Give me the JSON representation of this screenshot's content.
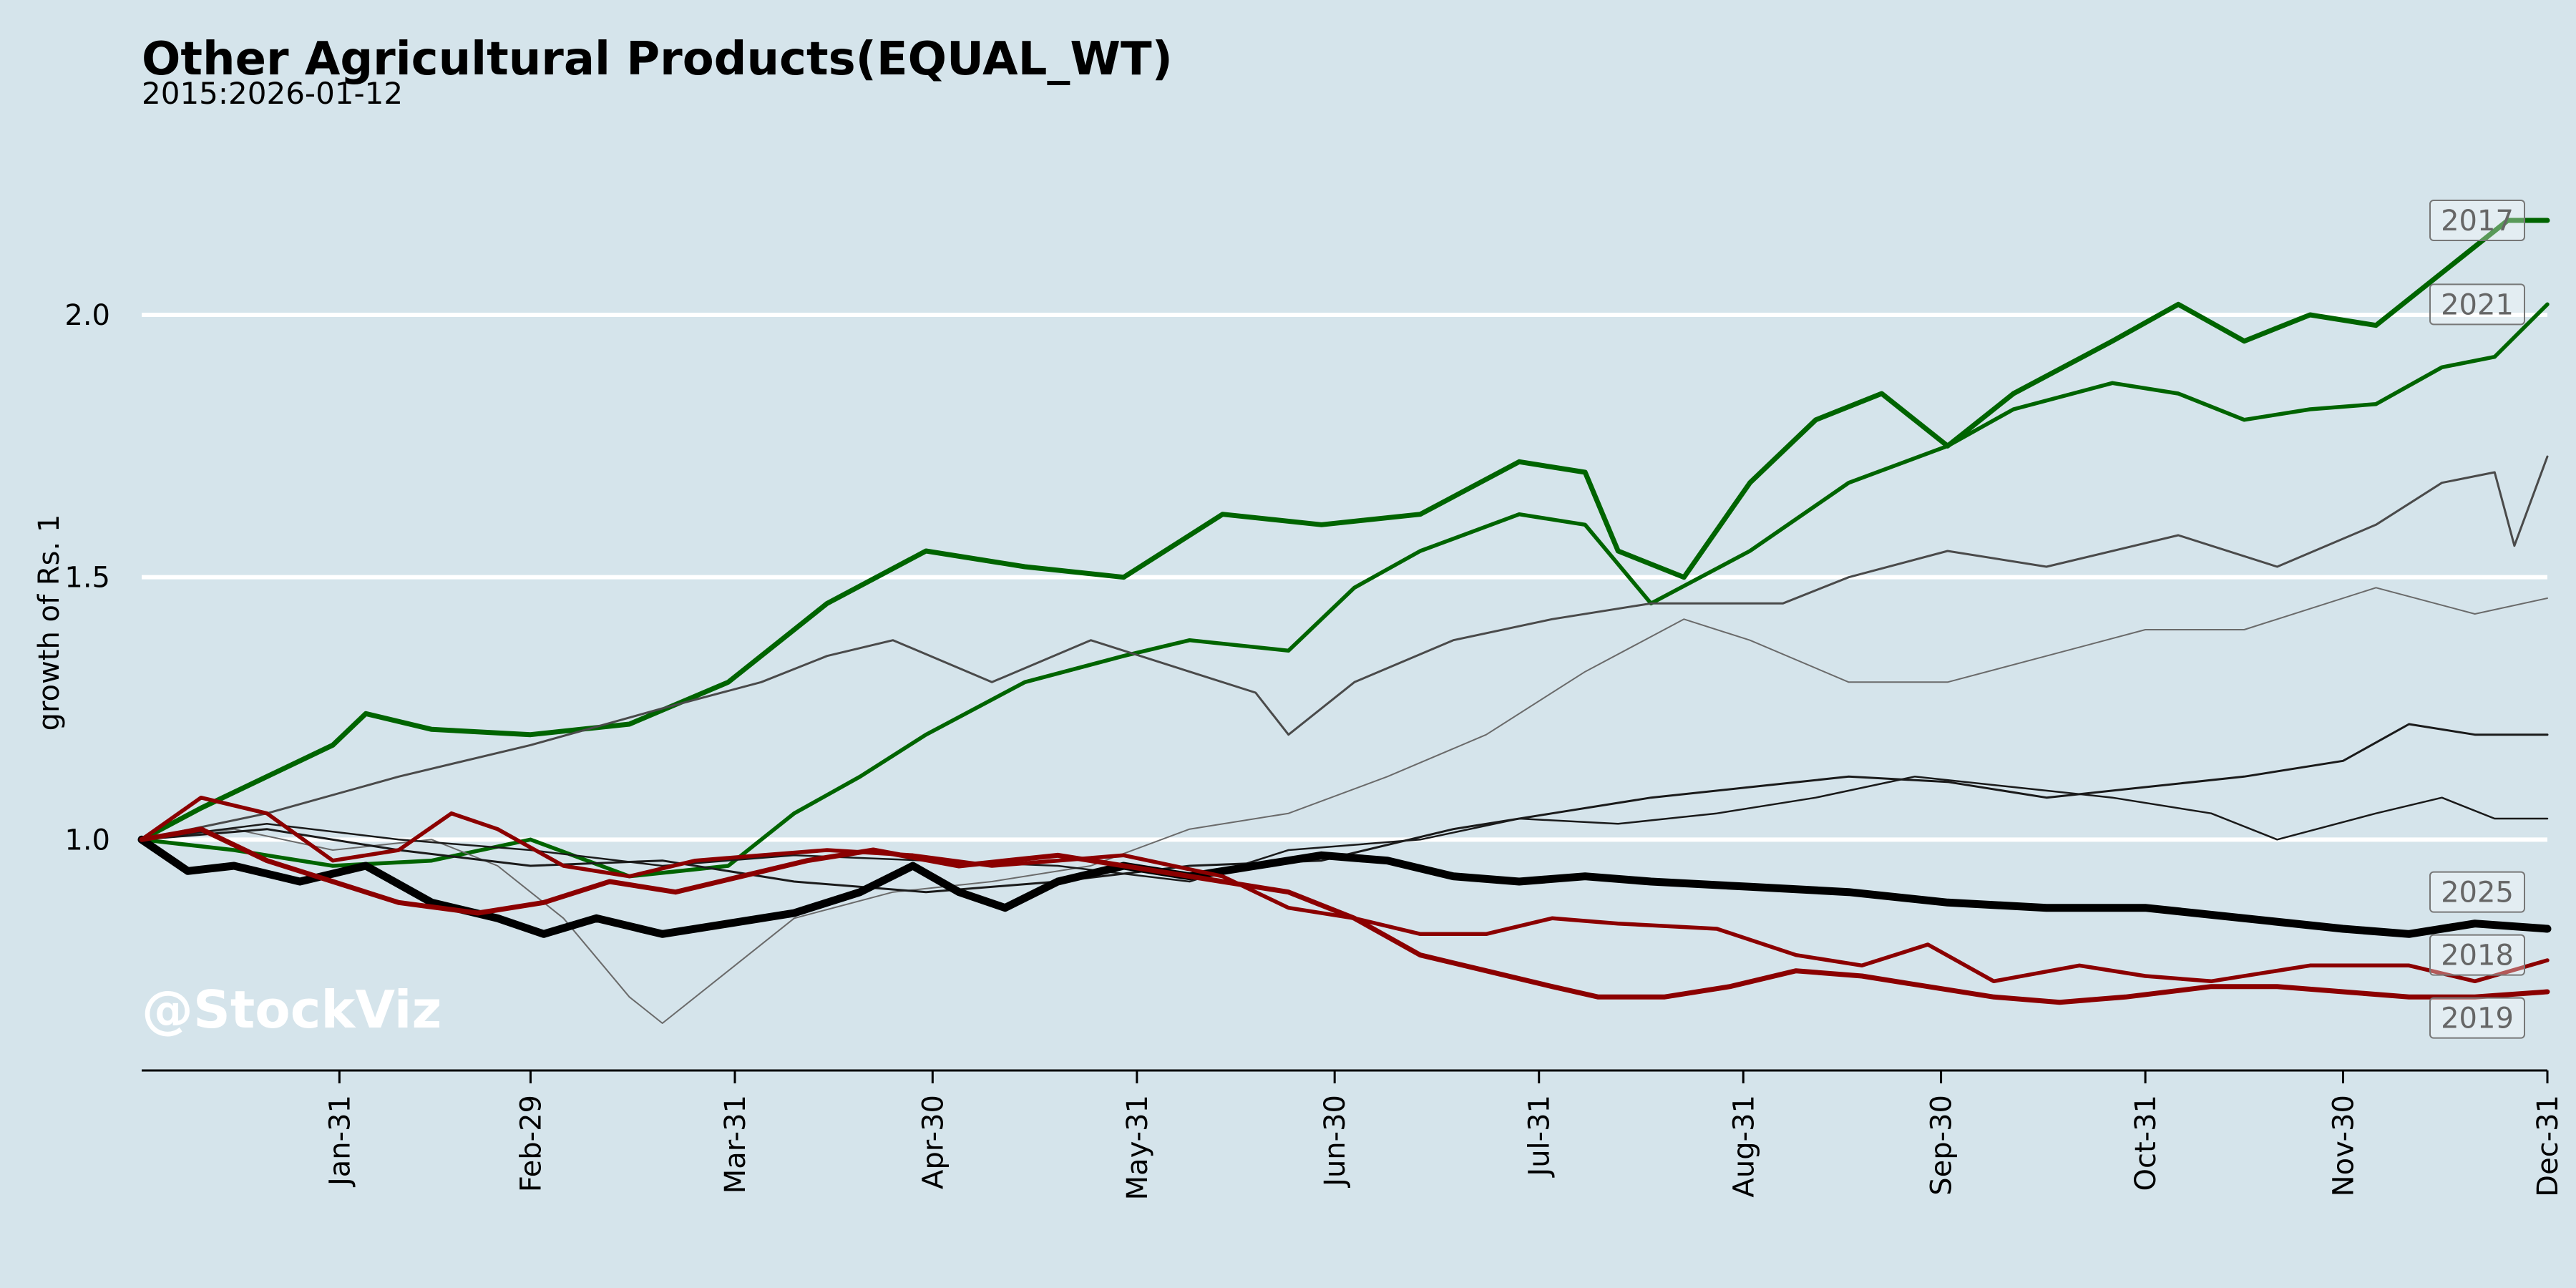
{
  "chart_data": {
    "type": "line",
    "title": "Other Agricultural Products(EQUAL_WT)",
    "subtitle": "2015:2026-01-12",
    "ylabel": "growth of Rs. 1",
    "xlabel": "",
    "watermark": "@StockViz",
    "x_range_days": [
      1,
      366
    ],
    "ylim": [
      0.56,
      2.3
    ],
    "y_ticks": [
      1.0,
      1.5,
      2.0
    ],
    "y_tick_labels": [
      "1.0",
      "1.5",
      "2.0"
    ],
    "x_ticks": [
      {
        "label": "Jan-31",
        "day": 31
      },
      {
        "label": "Feb-29",
        "day": 60
      },
      {
        "label": "Mar-31",
        "day": 91
      },
      {
        "label": "Apr-30",
        "day": 121
      },
      {
        "label": "May-31",
        "day": 152
      },
      {
        "label": "Jun-30",
        "day": 182
      },
      {
        "label": "Jul-31",
        "day": 213
      },
      {
        "label": "Aug-31",
        "day": 244
      },
      {
        "label": "Sep-30",
        "day": 274
      },
      {
        "label": "Oct-31",
        "day": 305
      },
      {
        "label": "Nov-30",
        "day": 335
      },
      {
        "label": "Dec-31",
        "day": 366
      }
    ],
    "grid": "horizontal",
    "series": [
      {
        "name": "2017",
        "color": "#006400",
        "width": 7,
        "opacity": 1,
        "labeled": true,
        "points": [
          [
            1,
            1.0
          ],
          [
            10,
            1.06
          ],
          [
            20,
            1.12
          ],
          [
            30,
            1.18
          ],
          [
            35,
            1.24
          ],
          [
            45,
            1.21
          ],
          [
            60,
            1.2
          ],
          [
            75,
            1.22
          ],
          [
            90,
            1.3
          ],
          [
            105,
            1.45
          ],
          [
            120,
            1.55
          ],
          [
            135,
            1.52
          ],
          [
            150,
            1.5
          ],
          [
            165,
            1.62
          ],
          [
            180,
            1.6
          ],
          [
            195,
            1.62
          ],
          [
            210,
            1.72
          ],
          [
            220,
            1.7
          ],
          [
            225,
            1.55
          ],
          [
            235,
            1.5
          ],
          [
            245,
            1.68
          ],
          [
            255,
            1.8
          ],
          [
            265,
            1.85
          ],
          [
            275,
            1.75
          ],
          [
            285,
            1.85
          ],
          [
            300,
            1.95
          ],
          [
            310,
            2.02
          ],
          [
            320,
            1.95
          ],
          [
            330,
            2.0
          ],
          [
            340,
            1.98
          ],
          [
            350,
            2.08
          ],
          [
            360,
            2.18
          ],
          [
            366,
            2.18
          ]
        ]
      },
      {
        "name": "2021",
        "color": "#006400",
        "width": 5.5,
        "opacity": 1,
        "labeled": true,
        "points": [
          [
            1,
            1.0
          ],
          [
            15,
            0.98
          ],
          [
            30,
            0.95
          ],
          [
            45,
            0.96
          ],
          [
            60,
            1.0
          ],
          [
            75,
            0.93
          ],
          [
            90,
            0.95
          ],
          [
            100,
            1.05
          ],
          [
            110,
            1.12
          ],
          [
            120,
            1.2
          ],
          [
            135,
            1.3
          ],
          [
            150,
            1.35
          ],
          [
            160,
            1.38
          ],
          [
            175,
            1.36
          ],
          [
            185,
            1.48
          ],
          [
            195,
            1.55
          ],
          [
            210,
            1.62
          ],
          [
            220,
            1.6
          ],
          [
            230,
            1.45
          ],
          [
            245,
            1.55
          ],
          [
            260,
            1.68
          ],
          [
            275,
            1.75
          ],
          [
            285,
            1.82
          ],
          [
            300,
            1.87
          ],
          [
            310,
            1.85
          ],
          [
            320,
            1.8
          ],
          [
            330,
            1.82
          ],
          [
            340,
            1.83
          ],
          [
            350,
            1.9
          ],
          [
            358,
            1.92
          ],
          [
            366,
            2.02
          ]
        ]
      },
      {
        "name": "s3",
        "color": "#4a4a4a",
        "width": 3,
        "opacity": 1,
        "labeled": false,
        "points": [
          [
            1,
            1.0
          ],
          [
            20,
            1.05
          ],
          [
            40,
            1.12
          ],
          [
            60,
            1.18
          ],
          [
            80,
            1.25
          ],
          [
            95,
            1.3
          ],
          [
            105,
            1.35
          ],
          [
            115,
            1.38
          ],
          [
            130,
            1.3
          ],
          [
            145,
            1.38
          ],
          [
            160,
            1.32
          ],
          [
            170,
            1.28
          ],
          [
            175,
            1.2
          ],
          [
            185,
            1.3
          ],
          [
            200,
            1.38
          ],
          [
            215,
            1.42
          ],
          [
            230,
            1.45
          ],
          [
            250,
            1.45
          ],
          [
            260,
            1.5
          ],
          [
            275,
            1.55
          ],
          [
            290,
            1.52
          ],
          [
            310,
            1.58
          ],
          [
            325,
            1.52
          ],
          [
            340,
            1.6
          ],
          [
            350,
            1.68
          ],
          [
            358,
            1.7
          ],
          [
            361,
            1.56
          ],
          [
            366,
            1.73
          ]
        ]
      },
      {
        "name": "s4",
        "color": "#6a6a6a",
        "width": 2,
        "opacity": 1,
        "labeled": false,
        "points": [
          [
            1,
            1.0
          ],
          [
            15,
            1.02
          ],
          [
            30,
            0.98
          ],
          [
            45,
            1.0
          ],
          [
            55,
            0.95
          ],
          [
            65,
            0.85
          ],
          [
            75,
            0.7
          ],
          [
            80,
            0.65
          ],
          [
            90,
            0.75
          ],
          [
            100,
            0.85
          ],
          [
            115,
            0.9
          ],
          [
            130,
            0.92
          ],
          [
            145,
            0.95
          ],
          [
            160,
            1.02
          ],
          [
            175,
            1.05
          ],
          [
            190,
            1.12
          ],
          [
            205,
            1.2
          ],
          [
            220,
            1.32
          ],
          [
            235,
            1.42
          ],
          [
            245,
            1.38
          ],
          [
            260,
            1.3
          ],
          [
            275,
            1.3
          ],
          [
            290,
            1.35
          ],
          [
            305,
            1.4
          ],
          [
            320,
            1.4
          ],
          [
            340,
            1.48
          ],
          [
            355,
            1.43
          ],
          [
            366,
            1.46
          ]
        ]
      },
      {
        "name": "s5",
        "color": "#1a1a1a",
        "width": 3,
        "opacity": 1,
        "labeled": false,
        "points": [
          [
            1,
            1.0
          ],
          [
            20,
            1.02
          ],
          [
            40,
            0.98
          ],
          [
            60,
            0.95
          ],
          [
            80,
            0.96
          ],
          [
            100,
            0.92
          ],
          [
            120,
            0.9
          ],
          [
            140,
            0.92
          ],
          [
            160,
            0.95
          ],
          [
            180,
            0.96
          ],
          [
            200,
            1.02
          ],
          [
            215,
            1.05
          ],
          [
            230,
            1.08
          ],
          [
            245,
            1.1
          ],
          [
            260,
            1.12
          ],
          [
            275,
            1.11
          ],
          [
            290,
            1.08
          ],
          [
            305,
            1.1
          ],
          [
            320,
            1.12
          ],
          [
            335,
            1.15
          ],
          [
            345,
            1.22
          ],
          [
            355,
            1.2
          ],
          [
            366,
            1.2
          ]
        ]
      },
      {
        "name": "s6",
        "color": "#1a1a1a",
        "width": 2.5,
        "opacity": 1,
        "labeled": false,
        "points": [
          [
            1,
            1.0
          ],
          [
            20,
            1.03
          ],
          [
            40,
            1.0
          ],
          [
            60,
            0.98
          ],
          [
            80,
            0.95
          ],
          [
            100,
            0.97
          ],
          [
            120,
            0.96
          ],
          [
            140,
            0.95
          ],
          [
            160,
            0.92
          ],
          [
            175,
            0.98
          ],
          [
            195,
            1.0
          ],
          [
            210,
            1.04
          ],
          [
            225,
            1.03
          ],
          [
            240,
            1.05
          ],
          [
            255,
            1.08
          ],
          [
            270,
            1.12
          ],
          [
            285,
            1.1
          ],
          [
            300,
            1.08
          ],
          [
            315,
            1.05
          ],
          [
            325,
            1.0
          ],
          [
            340,
            1.05
          ],
          [
            350,
            1.08
          ],
          [
            358,
            1.04
          ],
          [
            366,
            1.04
          ]
        ]
      },
      {
        "name": "2025",
        "color": "#000000",
        "width": 11,
        "opacity": 1,
        "labeled": true,
        "points": [
          [
            1,
            1.0
          ],
          [
            8,
            0.94
          ],
          [
            15,
            0.95
          ],
          [
            25,
            0.92
          ],
          [
            35,
            0.95
          ],
          [
            45,
            0.88
          ],
          [
            55,
            0.85
          ],
          [
            62,
            0.82
          ],
          [
            70,
            0.85
          ],
          [
            80,
            0.82
          ],
          [
            90,
            0.84
          ],
          [
            100,
            0.86
          ],
          [
            110,
            0.9
          ],
          [
            118,
            0.95
          ],
          [
            125,
            0.9
          ],
          [
            132,
            0.87
          ],
          [
            140,
            0.92
          ],
          [
            150,
            0.95
          ],
          [
            160,
            0.93
          ],
          [
            170,
            0.95
          ],
          [
            180,
            0.97
          ],
          [
            190,
            0.96
          ],
          [
            200,
            0.93
          ],
          [
            210,
            0.92
          ],
          [
            220,
            0.93
          ],
          [
            230,
            0.92
          ],
          [
            245,
            0.91
          ],
          [
            260,
            0.9
          ],
          [
            275,
            0.88
          ],
          [
            290,
            0.87
          ],
          [
            305,
            0.87
          ],
          [
            320,
            0.85
          ],
          [
            335,
            0.83
          ],
          [
            345,
            0.82
          ],
          [
            355,
            0.84
          ],
          [
            366,
            0.83
          ]
        ]
      },
      {
        "name": "2018",
        "color": "#8b0000",
        "width": 5.5,
        "opacity": 1,
        "labeled": true,
        "points": [
          [
            1,
            1.0
          ],
          [
            10,
            1.08
          ],
          [
            20,
            1.05
          ],
          [
            30,
            0.96
          ],
          [
            40,
            0.98
          ],
          [
            48,
            1.05
          ],
          [
            55,
            1.02
          ],
          [
            65,
            0.95
          ],
          [
            75,
            0.93
          ],
          [
            85,
            0.96
          ],
          [
            95,
            0.97
          ],
          [
            105,
            0.98
          ],
          [
            118,
            0.97
          ],
          [
            130,
            0.95
          ],
          [
            140,
            0.96
          ],
          [
            150,
            0.97
          ],
          [
            165,
            0.93
          ],
          [
            175,
            0.87
          ],
          [
            185,
            0.85
          ],
          [
            195,
            0.82
          ],
          [
            205,
            0.82
          ],
          [
            215,
            0.85
          ],
          [
            225,
            0.84
          ],
          [
            240,
            0.83
          ],
          [
            252,
            0.78
          ],
          [
            262,
            0.76
          ],
          [
            272,
            0.8
          ],
          [
            282,
            0.73
          ],
          [
            295,
            0.76
          ],
          [
            305,
            0.74
          ],
          [
            315,
            0.73
          ],
          [
            330,
            0.76
          ],
          [
            345,
            0.76
          ],
          [
            355,
            0.73
          ],
          [
            366,
            0.77
          ]
        ]
      },
      {
        "name": "2019",
        "color": "#8b0000",
        "width": 7,
        "opacity": 1,
        "labeled": true,
        "points": [
          [
            1,
            1.0
          ],
          [
            10,
            1.02
          ],
          [
            20,
            0.96
          ],
          [
            30,
            0.92
          ],
          [
            40,
            0.88
          ],
          [
            52,
            0.86
          ],
          [
            62,
            0.88
          ],
          [
            72,
            0.92
          ],
          [
            82,
            0.9
          ],
          [
            92,
            0.93
          ],
          [
            102,
            0.96
          ],
          [
            112,
            0.98
          ],
          [
            125,
            0.95
          ],
          [
            140,
            0.97
          ],
          [
            155,
            0.94
          ],
          [
            165,
            0.92
          ],
          [
            175,
            0.9
          ],
          [
            185,
            0.85
          ],
          [
            195,
            0.78
          ],
          [
            205,
            0.75
          ],
          [
            215,
            0.72
          ],
          [
            222,
            0.7
          ],
          [
            232,
            0.7
          ],
          [
            242,
            0.72
          ],
          [
            252,
            0.75
          ],
          [
            262,
            0.74
          ],
          [
            272,
            0.72
          ],
          [
            282,
            0.7
          ],
          [
            292,
            0.69
          ],
          [
            302,
            0.7
          ],
          [
            315,
            0.72
          ],
          [
            325,
            0.72
          ],
          [
            335,
            0.71
          ],
          [
            345,
            0.7
          ],
          [
            355,
            0.7
          ],
          [
            366,
            0.71
          ]
        ]
      }
    ],
    "annotations": [
      {
        "text": "2017",
        "series": "2017",
        "y": 2.18
      },
      {
        "text": "2021",
        "series": "2021",
        "y": 2.02
      },
      {
        "text": "2025",
        "series": "2025",
        "y": 0.9
      },
      {
        "text": "2018",
        "series": "2018",
        "y": 0.78
      },
      {
        "text": "2019",
        "series": "2019",
        "y": 0.66
      }
    ]
  }
}
